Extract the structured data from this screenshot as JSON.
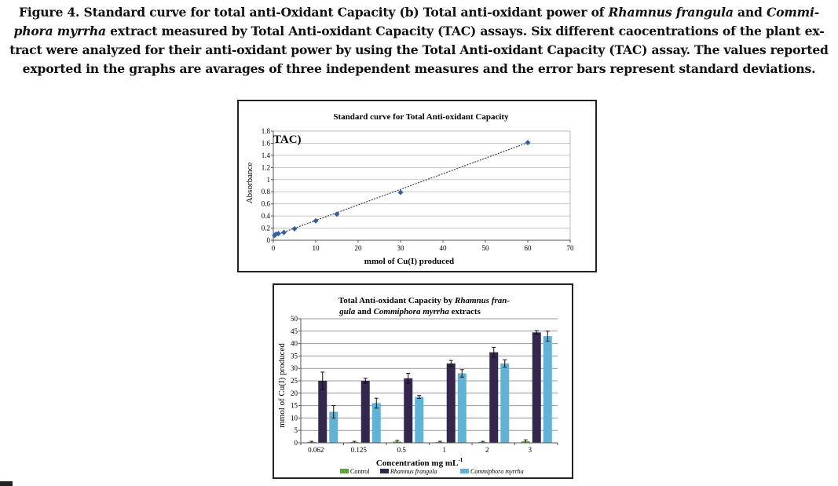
{
  "caption": {
    "part1": "Figure 4. Standard curve for total anti-Oxidant Capacity (b) Total anti-oxidant power of ",
    "species1": "Rhamnus frangula",
    "part2": " and ",
    "species2": "Commi- phora myrrha",
    "part3": " extract measured by Total Anti-oxidant Capacity (TAC) assays. Six different caocentrations of the plant ex- tract were analyzed for their anti-oxidant power by using the Total Anti-oxidant Capacity (TAC) assay. The values reported exported in the graphs are avarages of three independent measures and the error bars represent standard deviations."
  },
  "chart_data": [
    {
      "type": "scatter",
      "title": "Standard curve for Total Anti-oxidant Capacity",
      "inset_label": "TAC)",
      "xlabel": "mmol of Cu(I) produced",
      "ylabel": "Absorbance",
      "xlim": [
        0,
        70
      ],
      "ylim": [
        0,
        1.8
      ],
      "xticks": [
        0,
        10,
        20,
        30,
        40,
        50,
        60,
        70
      ],
      "yticks": [
        0,
        0.2,
        0.4,
        0.6,
        0.8,
        1,
        1.2,
        1.4,
        1.6,
        1.8
      ],
      "ytick_labels": [
        "0",
        "0.2",
        "0.4",
        "0.6",
        "0.8",
        "1",
        "1.2",
        "1.4",
        "1.6",
        "1.8"
      ],
      "points": [
        {
          "x": 0.3,
          "y": 0.08
        },
        {
          "x": 0.6,
          "y": 0.1
        },
        {
          "x": 1.2,
          "y": 0.11
        },
        {
          "x": 2.5,
          "y": 0.13
        },
        {
          "x": 5,
          "y": 0.19
        },
        {
          "x": 10,
          "y": 0.32
        },
        {
          "x": 15,
          "y": 0.43
        },
        {
          "x": 30,
          "y": 0.79
        },
        {
          "x": 60,
          "y": 1.61
        }
      ],
      "trendline": [
        [
          0,
          0.07
        ],
        [
          60,
          1.61
        ]
      ],
      "marker_color": "#2f5fa8",
      "grid": true
    },
    {
      "type": "bar",
      "title_parts": [
        "Total Anti-oxidant Capacity by ",
        "Rhamnus fran-",
        "gula",
        " and ",
        "Commiphora myrrha",
        " extracts"
      ],
      "xlabel": "Concentration mg mL",
      "xlabel_sup": "-1",
      "ylabel": "mmol of Cu(I) produced",
      "categories": [
        "0.062",
        "0.125",
        "0.5",
        "1",
        "2",
        "3"
      ],
      "ylim": [
        0,
        50
      ],
      "yticks": [
        0,
        5,
        10,
        15,
        20,
        25,
        30,
        35,
        40,
        45,
        50
      ],
      "series": [
        {
          "name": "Control",
          "color": "#5aa832",
          "values": [
            0.3,
            0.3,
            0.5,
            0.3,
            0.3,
            0.6
          ],
          "errors": [
            0.3,
            0.3,
            0.5,
            0.3,
            0.3,
            0.6
          ]
        },
        {
          "name": "Rhamnus frangula",
          "color": "#33274e",
          "values": [
            25,
            25,
            26,
            32,
            36.5,
            44.5
          ],
          "errors": [
            3.5,
            1,
            2,
            1.2,
            2,
            0.7
          ]
        },
        {
          "name": "Commiphora myrrha",
          "color": "#5fb3d6",
          "values": [
            12.5,
            16,
            18.5,
            28,
            32,
            43
          ],
          "errors": [
            2.5,
            2,
            0.6,
            1.5,
            1.5,
            2
          ]
        }
      ],
      "legend": "bottom",
      "grid": true
    }
  ]
}
